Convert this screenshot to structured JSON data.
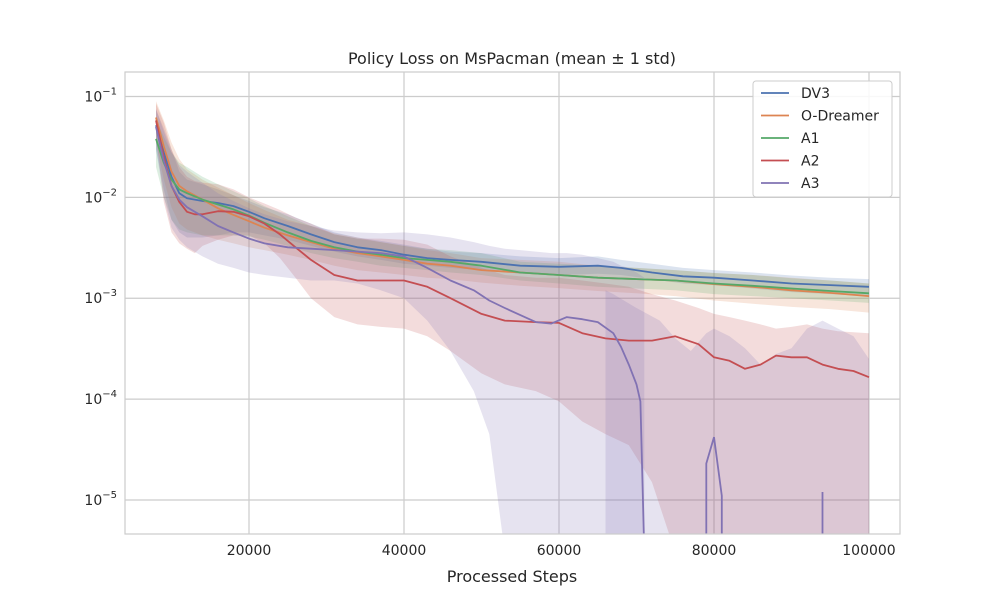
{
  "chart_data": {
    "type": "line",
    "title": "Policy Loss on MsPacman (mean ± 1 std)",
    "xlabel": "Processed Steps",
    "ylabel": "",
    "xlim": [
      4000,
      104000
    ],
    "ylim": [
      4.6e-06,
      0.175
    ],
    "yscale": "log",
    "grid": true,
    "legend_position": "top-right",
    "x_ticks": [
      {
        "value": 20000,
        "label": "20000"
      },
      {
        "value": 40000,
        "label": "40000"
      },
      {
        "value": 60000,
        "label": "60000"
      },
      {
        "value": 80000,
        "label": "80000"
      },
      {
        "value": 100000,
        "label": "100000"
      }
    ],
    "y_ticks": [
      {
        "value": 0.1,
        "base": "10",
        "exp": "−1"
      },
      {
        "value": 0.01,
        "base": "10",
        "exp": "−2"
      },
      {
        "value": 0.001,
        "base": "10",
        "exp": "−3"
      },
      {
        "value": 0.0001,
        "base": "10",
        "exp": "−4"
      },
      {
        "value": 1e-05,
        "base": "10",
        "exp": "−5"
      }
    ],
    "series": [
      {
        "name": "DV3",
        "color": "#4c72b0",
        "band_opacity": 0.2,
        "x": [
          8000,
          9000,
          10000,
          11000,
          12000,
          14000,
          16000,
          18000,
          20000,
          22000,
          25000,
          28000,
          31000,
          34000,
          37000,
          40000,
          43000,
          46000,
          50000,
          55000,
          60000,
          65000,
          68000,
          72000,
          76000,
          80000,
          85000,
          90000,
          95000,
          100000
        ],
        "y": [
          0.052,
          0.028,
          0.016,
          0.011,
          0.0098,
          0.0092,
          0.0088,
          0.0082,
          0.0072,
          0.0062,
          0.0052,
          0.0043,
          0.0036,
          0.0032,
          0.003,
          0.0027,
          0.0025,
          0.0024,
          0.0023,
          0.0021,
          0.00205,
          0.0021,
          0.002,
          0.0018,
          0.00165,
          0.0016,
          0.0015,
          0.0014,
          0.00135,
          0.0013
        ],
        "low": [
          0.03,
          0.012,
          0.006,
          0.0045,
          0.004,
          0.004,
          0.0042,
          0.0045,
          0.0045,
          0.0042,
          0.0038,
          0.0033,
          0.0029,
          0.0026,
          0.0024,
          0.0022,
          0.0021,
          0.002,
          0.0019,
          0.00175,
          0.0017,
          0.00175,
          0.0017,
          0.00155,
          0.0014,
          0.00135,
          0.00125,
          0.00115,
          0.0011,
          0.00105
        ],
        "high": [
          0.075,
          0.048,
          0.03,
          0.018,
          0.015,
          0.0135,
          0.012,
          0.0105,
          0.0092,
          0.008,
          0.0068,
          0.0055,
          0.0045,
          0.004,
          0.0037,
          0.0034,
          0.0031,
          0.0029,
          0.0028,
          0.0026,
          0.0025,
          0.0026,
          0.0024,
          0.0022,
          0.002,
          0.0019,
          0.0018,
          0.00168,
          0.0016,
          0.00155
        ]
      },
      {
        "name": "O-Dreamer",
        "color": "#dd8452",
        "band_opacity": 0.2,
        "x": [
          8000,
          9000,
          10000,
          11000,
          12000,
          14000,
          16000,
          18000,
          20000,
          22000,
          25000,
          28000,
          31000,
          34000,
          37000,
          40000,
          43000,
          46000,
          50000,
          55000,
          60000,
          65000,
          70000,
          75000,
          80000,
          85000,
          90000,
          95000,
          100000
        ],
        "y": [
          0.062,
          0.032,
          0.018,
          0.013,
          0.0115,
          0.0095,
          0.0078,
          0.0067,
          0.0058,
          0.005,
          0.0042,
          0.0036,
          0.0031,
          0.0028,
          0.0026,
          0.0024,
          0.0022,
          0.0021,
          0.0019,
          0.0018,
          0.0017,
          0.0016,
          0.00155,
          0.0015,
          0.00138,
          0.0013,
          0.0012,
          0.00113,
          0.00105
        ],
        "low": [
          0.035,
          0.015,
          0.008,
          0.0055,
          0.0048,
          0.0042,
          0.0038,
          0.0035,
          0.0032,
          0.003,
          0.0027,
          0.0024,
          0.0021,
          0.0019,
          0.0018,
          0.0017,
          0.0016,
          0.00155,
          0.00143,
          0.00133,
          0.00126,
          0.00118,
          0.00112,
          0.00105,
          0.00095,
          0.00088,
          0.00082,
          0.00078,
          0.00072
        ],
        "high": [
          0.09,
          0.058,
          0.035,
          0.024,
          0.019,
          0.015,
          0.0125,
          0.0105,
          0.0088,
          0.0075,
          0.006,
          0.0052,
          0.0044,
          0.004,
          0.0036,
          0.0033,
          0.003,
          0.0028,
          0.0025,
          0.0024,
          0.0023,
          0.0021,
          0.002,
          0.0019,
          0.00178,
          0.0017,
          0.0016,
          0.0015,
          0.0014
        ]
      },
      {
        "name": "A1",
        "color": "#55a868",
        "band_opacity": 0.2,
        "x": [
          8000,
          9000,
          10000,
          11000,
          12000,
          14000,
          16000,
          18000,
          20000,
          22000,
          25000,
          28000,
          31000,
          34000,
          37000,
          40000,
          43000,
          46000,
          50000,
          55000,
          60000,
          65000,
          70000,
          75000,
          80000,
          85000,
          90000,
          95000,
          100000
        ],
        "y": [
          0.038,
          0.022,
          0.015,
          0.012,
          0.011,
          0.0095,
          0.0085,
          0.0076,
          0.0066,
          0.0056,
          0.0045,
          0.0037,
          0.0032,
          0.0029,
          0.0027,
          0.0025,
          0.0024,
          0.0023,
          0.0021,
          0.0018,
          0.0017,
          0.0016,
          0.00155,
          0.0015,
          0.0014,
          0.00133,
          0.00125,
          0.00118,
          0.00112
        ],
        "low": [
          0.02,
          0.01,
          0.006,
          0.0048,
          0.0045,
          0.0042,
          0.0042,
          0.0042,
          0.0041,
          0.0038,
          0.0033,
          0.0028,
          0.0025,
          0.0023,
          0.0021,
          0.002,
          0.0019,
          0.0018,
          0.0017,
          0.0015,
          0.0014,
          0.0013,
          0.00125,
          0.0012,
          0.0011,
          0.00105,
          0.001,
          0.00095,
          0.0009
        ],
        "high": [
          0.06,
          0.04,
          0.028,
          0.022,
          0.02,
          0.016,
          0.0135,
          0.0115,
          0.0098,
          0.0082,
          0.0065,
          0.0052,
          0.0043,
          0.0039,
          0.0036,
          0.0033,
          0.0031,
          0.003,
          0.0028,
          0.0023,
          0.0022,
          0.0021,
          0.002,
          0.0019,
          0.00178,
          0.0017,
          0.00158,
          0.0015,
          0.0014
        ]
      },
      {
        "name": "A2",
        "color": "#c44e52",
        "band_opacity": 0.2,
        "x": [
          8000,
          9000,
          10000,
          11000,
          12000,
          13000,
          14000,
          16000,
          18000,
          20000,
          22000,
          24000,
          26000,
          28000,
          31000,
          34000,
          37000,
          40000,
          43000,
          46000,
          50000,
          53000,
          57000,
          60000,
          63000,
          66000,
          69000,
          72000,
          75000,
          78000,
          80000,
          82000,
          84000,
          86000,
          88000,
          90000,
          92000,
          94000,
          96000,
          98000,
          100000
        ],
        "y": [
          0.058,
          0.025,
          0.013,
          0.009,
          0.0072,
          0.0068,
          0.0068,
          0.0073,
          0.0072,
          0.0065,
          0.0055,
          0.0043,
          0.0032,
          0.0024,
          0.0017,
          0.0015,
          0.0015,
          0.0015,
          0.0013,
          0.001,
          0.0007,
          0.0006,
          0.00058,
          0.00057,
          0.00045,
          0.0004,
          0.00038,
          0.00038,
          0.00042,
          0.00035,
          0.00026,
          0.00024,
          0.0002,
          0.00022,
          0.00027,
          0.00026,
          0.00026,
          0.00022,
          0.0002,
          0.00019,
          0.000165
        ],
        "low": [
          0.04,
          0.009,
          0.0045,
          0.0035,
          0.0031,
          0.0028,
          0.0033,
          0.0038,
          0.0042,
          0.0042,
          0.0035,
          0.0025,
          0.0016,
          0.001,
          0.00065,
          0.00055,
          0.00052,
          0.0005,
          0.00042,
          0.0003,
          0.00018,
          0.00014,
          0.00012,
          9.5e-05,
          6e-05,
          4.5e-05,
          3.5e-05,
          1.5e-05,
          3e-06,
          3e-06,
          3e-06,
          3e-06,
          3e-06,
          3e-06,
          3e-06,
          3e-06,
          3e-06,
          3e-06,
          3e-06,
          3e-06,
          3e-06
        ],
        "high": [
          0.085,
          0.055,
          0.03,
          0.02,
          0.016,
          0.0145,
          0.014,
          0.0135,
          0.012,
          0.01,
          0.0087,
          0.0075,
          0.0063,
          0.0055,
          0.0043,
          0.0039,
          0.0039,
          0.0038,
          0.0034,
          0.0026,
          0.002,
          0.0017,
          0.0016,
          0.0016,
          0.0015,
          0.0014,
          0.0013,
          0.0011,
          0.00095,
          0.0008,
          0.0007,
          0.00065,
          0.0006,
          0.00055,
          0.0005,
          0.00052,
          0.00055,
          0.0005,
          0.00047,
          0.00046,
          0.00045
        ]
      },
      {
        "name": "A3",
        "color": "#8172b3",
        "band_opacity": 0.2,
        "x": [
          8000,
          9000,
          10000,
          11000,
          12000,
          14000,
          16000,
          18000,
          20000,
          22000,
          25000,
          28000,
          31000,
          34000,
          37000,
          40000,
          43000,
          46000,
          49000,
          51000,
          53000,
          55000,
          57000,
          59000,
          61000,
          63000,
          65000,
          67000,
          68000,
          69000,
          70000,
          70500,
          71000
        ],
        "y": [
          0.05,
          0.023,
          0.013,
          0.0095,
          0.008,
          0.0065,
          0.0052,
          0.0045,
          0.0039,
          0.0035,
          0.0032,
          0.0031,
          0.003,
          0.0029,
          0.0028,
          0.0026,
          0.002,
          0.0015,
          0.0012,
          0.00095,
          0.0008,
          0.00068,
          0.00058,
          0.00056,
          0.00065,
          0.00062,
          0.00058,
          0.00045,
          0.00033,
          0.00022,
          0.00014,
          9.5e-05,
          3e-06
        ],
        "low": [
          0.03,
          0.01,
          0.005,
          0.0038,
          0.0032,
          0.0026,
          0.0022,
          0.002,
          0.0018,
          0.0017,
          0.0016,
          0.0015,
          0.0015,
          0.0014,
          0.0012,
          0.001,
          0.0006,
          0.0003,
          0.00012,
          4.5e-05,
          3e-06,
          3e-06,
          3e-06,
          3e-06,
          3e-06,
          3e-06,
          3e-06,
          3e-06,
          3e-06,
          3e-06,
          3e-06,
          3e-06,
          3e-06
        ],
        "high": [
          0.075,
          0.045,
          0.028,
          0.021,
          0.018,
          0.014,
          0.011,
          0.0092,
          0.0078,
          0.0068,
          0.0058,
          0.0052,
          0.0047,
          0.0045,
          0.0044,
          0.0045,
          0.0043,
          0.004,
          0.0036,
          0.0033,
          0.0031,
          0.003,
          0.0029,
          0.0028,
          0.0028,
          0.0027,
          0.0025,
          0.0023,
          0.0021,
          0.002,
          0.0018,
          0.0017,
          0.0016
        ]
      }
    ],
    "extra_segments": [
      {
        "series": "A3",
        "x": [
          66000,
          67000,
          70000,
          73000,
          75000,
          77000,
          79000,
          80000,
          82000,
          84000,
          86000,
          88000,
          90000,
          92000,
          94000,
          96000,
          98000,
          100000
        ],
        "low": [
          3e-06,
          3e-06,
          3e-06,
          3e-06,
          3e-06,
          3e-06,
          3e-06,
          3e-06,
          3e-06,
          3e-06,
          3e-06,
          3e-06,
          3e-06,
          3e-06,
          3e-06,
          3e-06,
          3e-06,
          3e-06
        ],
        "high": [
          0.0012,
          0.0011,
          0.0008,
          0.0006,
          0.0004,
          0.0003,
          0.00045,
          0.0005,
          0.00042,
          0.00032,
          0.00022,
          0.00028,
          0.00032,
          0.0005,
          0.0006,
          0.0005,
          0.00042,
          0.00025
        ]
      }
    ],
    "spikes": [
      {
        "series": "A3",
        "x": [
          79000,
          79000,
          80000,
          81000,
          81000
        ],
        "y": [
          3e-06,
          2.3e-05,
          4.2e-05,
          1.1e-05,
          3e-06
        ]
      },
      {
        "series": "A3",
        "x": [
          94000,
          94000,
          94000
        ],
        "y": [
          3e-06,
          1.2e-05,
          3e-06
        ]
      }
    ]
  }
}
